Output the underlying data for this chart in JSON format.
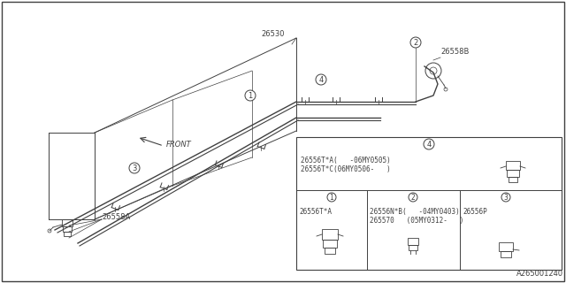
{
  "bg_color": "#ffffff",
  "line_color": "#404040",
  "part_number": "A265001240",
  "label_26530": "26530",
  "label_26558B": "26558B",
  "label_26558A": "26558A",
  "front_label": "FRONT",
  "table_items": {
    "row1_col4_part1": "26556T*A(   -06MY0505)",
    "row1_col4_part2": "26556T*C(06MY0506-   )",
    "row2_col1_part": "26556T*A",
    "row2_col2_part1": "26556N*B(   -04MY0403)",
    "row2_col2_part2": "265570   (05MY0312-   )",
    "row2_col3_part": "26556P"
  }
}
